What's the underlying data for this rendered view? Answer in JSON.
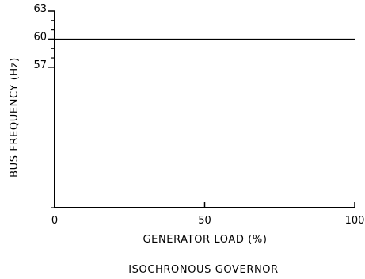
{
  "chart_data": {
    "type": "line",
    "title": "",
    "caption": "ISOCHRONOUS GOVERNOR",
    "xlabel": "GENERATOR LOAD (%)",
    "ylabel": "BUS FREQUENCY (Hz)",
    "xlim": [
      0,
      100
    ],
    "ylim": [
      42,
      63
    ],
    "x_ticks": [
      0,
      50,
      100
    ],
    "x_tick_labels": [
      "0",
      "50",
      "100"
    ],
    "y_ticks": [
      57,
      60,
      63
    ],
    "y_tick_labels": [
      "57",
      "60",
      "63"
    ],
    "y_minor_ticks": [
      42,
      58,
      59,
      61,
      62
    ],
    "grid": false,
    "series": [
      {
        "x": [
          0,
          100
        ],
        "y": [
          60,
          60
        ]
      }
    ]
  }
}
